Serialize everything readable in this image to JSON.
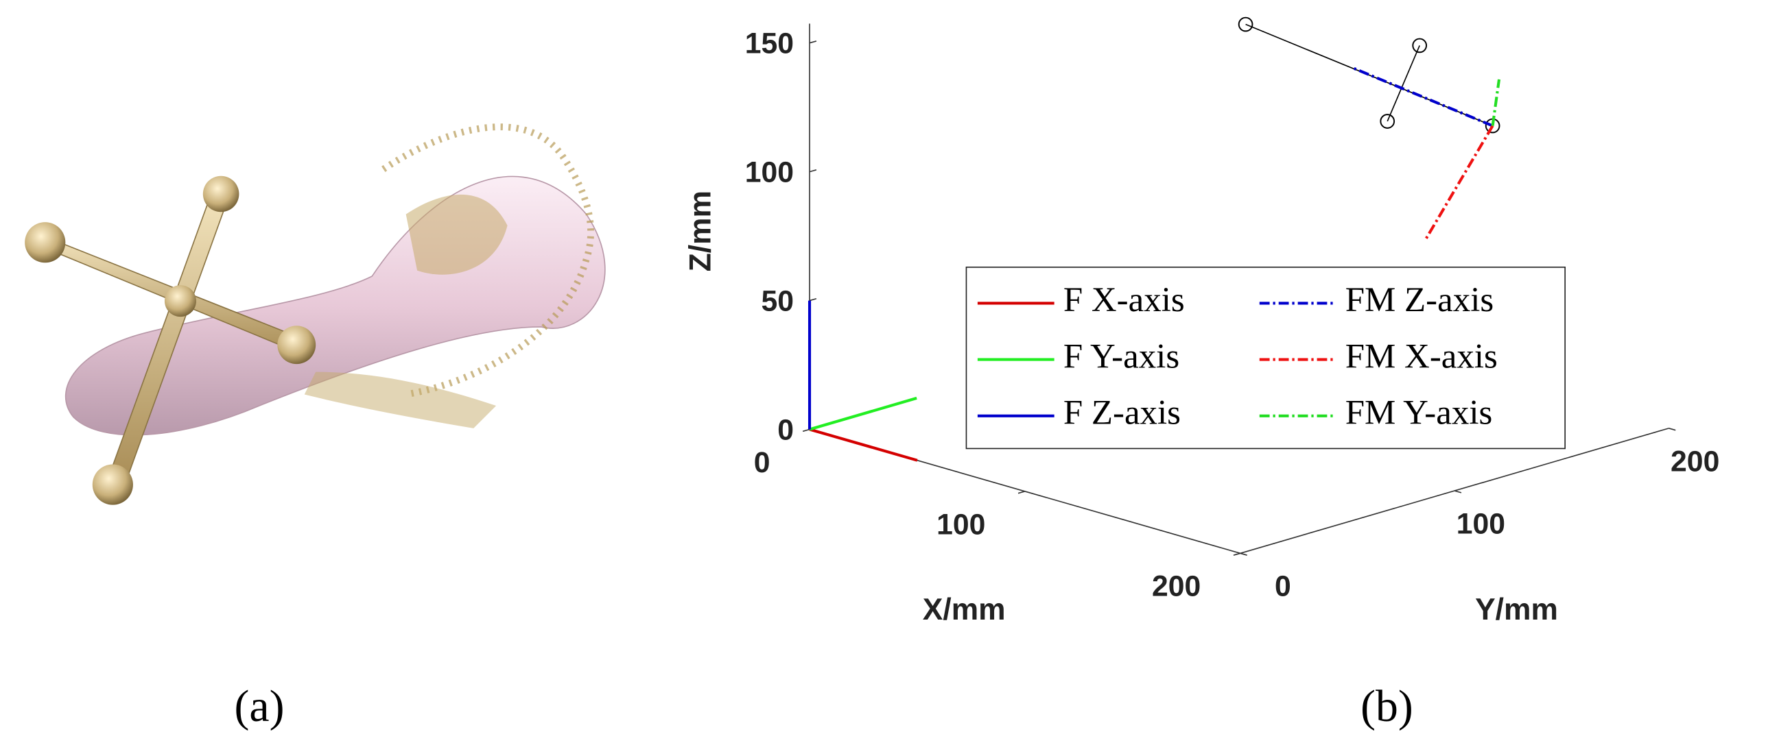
{
  "panels": {
    "a": {
      "label": "(a)"
    },
    "b": {
      "label": "(b)"
    }
  },
  "chart_data": {
    "type": "line3d",
    "xlabel": "X/mm",
    "ylabel": "Y/mm",
    "zlabel": "Z/mm",
    "xlim": [
      0,
      200
    ],
    "ylim": [
      0,
      200
    ],
    "zlim": [
      0,
      150
    ],
    "xticks": [
      0,
      100,
      200
    ],
    "yticks": [
      0,
      100,
      200
    ],
    "zticks": [
      0,
      50,
      100,
      150
    ],
    "legend": "right",
    "series": [
      {
        "name": "F X-axis",
        "color": "#d40000",
        "dash": "solid",
        "x": [
          0,
          50
        ],
        "y": [
          0,
          0
        ],
        "z": [
          0,
          0
        ]
      },
      {
        "name": "F Y-axis",
        "color": "#22ee22",
        "dash": "solid",
        "x": [
          0,
          0
        ],
        "y": [
          0,
          50
        ],
        "z": [
          0,
          0
        ]
      },
      {
        "name": "F Z-axis",
        "color": "#0000cc",
        "dash": "solid",
        "x": [
          0,
          0
        ],
        "y": [
          0,
          0
        ],
        "z": [
          0,
          50
        ]
      },
      {
        "name": "FM Z-axis",
        "color": "#0000cc",
        "dash": "dashdot",
        "x": [
          159,
          126.5
        ],
        "y": [
          159,
          126.5
        ],
        "z": [
          117.5,
          140
        ]
      },
      {
        "name": "FM X-axis",
        "color": "#ee1111",
        "dash": "dashdot",
        "x": [
          159,
          143.5
        ],
        "y": [
          159,
          143.5
        ],
        "z": [
          117.5,
          73.7
        ]
      },
      {
        "name": "FM Y-axis",
        "color": "#22dd22",
        "dash": "dashdot",
        "x": [
          159,
          160.5
        ],
        "y": [
          159,
          160.5
        ],
        "z": [
          117.5,
          135.5
        ]
      }
    ],
    "marker_lines": [
      {
        "color": "#000000",
        "x": [
          101.5,
          159
        ],
        "y": [
          101.5,
          159
        ],
        "z": [
          157,
          117.5
        ]
      },
      {
        "color": "#000000",
        "x": [
          142,
          134.5
        ],
        "y": [
          142,
          134.5
        ],
        "z": [
          148.7,
          119.3
        ]
      }
    ]
  }
}
